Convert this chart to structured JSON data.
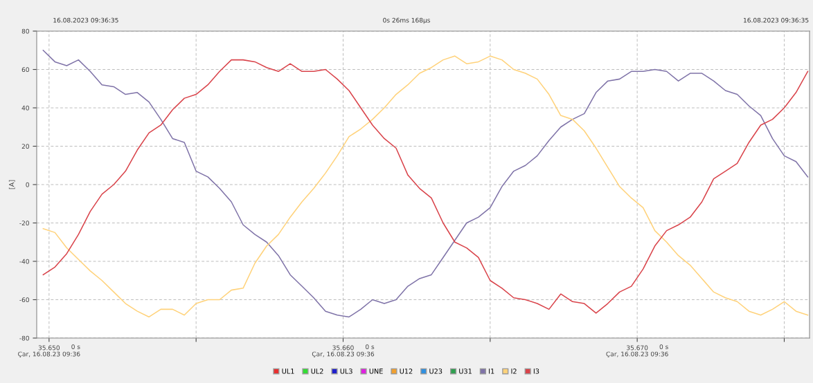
{
  "chart_data": {
    "type": "line",
    "ylabel": "[A]",
    "annotations": [
      "16.08.2023 09:36:35",
      "0s 26ms 168µs",
      "16.08.2023 09:36:35",
      "0 s\nÇar, 16.08.23 09:36",
      "0 s\nÇar, 16.08.23 09:36",
      "0 s\nÇar, 16.08.23 09:36"
    ],
    "x": [
      35.6498,
      35.6502,
      35.6506,
      35.651,
      35.6514,
      35.6518,
      35.6522,
      35.6526,
      35.653,
      35.6534,
      35.6538,
      35.6542,
      35.6546,
      35.655,
      35.6554,
      35.6558,
      35.6562,
      35.6566,
      35.657,
      35.6574,
      35.6578,
      35.6582,
      35.6586,
      35.659,
      35.6594,
      35.6598,
      35.6602,
      35.6606,
      35.661,
      35.6614,
      35.6618,
      35.6622,
      35.6626,
      35.663,
      35.6634,
      35.6638,
      35.6642,
      35.6646,
      35.665,
      35.6654,
      35.6658,
      35.6662,
      35.6666,
      35.667,
      35.6674,
      35.6678,
      35.6682,
      35.6686,
      35.669,
      35.6694,
      35.6698,
      35.6702,
      35.6706,
      35.671,
      35.6714,
      35.6718,
      35.6722,
      35.6726,
      35.673,
      35.6734,
      35.6738,
      35.6742,
      35.6746,
      35.675,
      35.6754,
      35.6758
    ],
    "xlim": [
      35.64958,
      35.67586
    ],
    "xticks": [
      {
        "value": 35.65,
        "label": "35.650"
      },
      {
        "value": 35.655,
        "label": null
      },
      {
        "value": 35.66,
        "label": "35.660"
      },
      {
        "value": 35.665,
        "label": null
      },
      {
        "value": 35.67,
        "label": "35.670"
      },
      {
        "value": 35.675,
        "label": null
      }
    ],
    "ylim": [
      -80,
      80
    ],
    "yticks": [
      -80,
      -60,
      -40,
      -20,
      0,
      20,
      40,
      60,
      80
    ],
    "grid": true,
    "legend": "bottom",
    "line_style": "solid",
    "marker": "none",
    "series": [
      {
        "name": "UL1",
        "color": "#e83030",
        "values": [
          null,
          null,
          null,
          null,
          null,
          null,
          null,
          null,
          null,
          null,
          null,
          null,
          null,
          null,
          null,
          null,
          null,
          null,
          null,
          null,
          null,
          null,
          null,
          null,
          null,
          null,
          null,
          null,
          null,
          null,
          null,
          null,
          null,
          null,
          null,
          null,
          null,
          null,
          null,
          null,
          null,
          null,
          null,
          null,
          null,
          null,
          null,
          null,
          null,
          null,
          null,
          null,
          null,
          null,
          null,
          null,
          null,
          null,
          null,
          null,
          null,
          null,
          null,
          null,
          null,
          null
        ]
      },
      {
        "name": "UL2",
        "color": "#33dd33",
        "values": [
          null,
          null,
          null,
          null,
          null,
          null,
          null,
          null,
          null,
          null,
          null,
          null,
          null,
          null,
          null,
          null,
          null,
          null,
          null,
          null,
          null,
          null,
          null,
          null,
          null,
          null,
          null,
          null,
          null,
          null,
          null,
          null,
          null,
          null,
          null,
          null,
          null,
          null,
          null,
          null,
          null,
          null,
          null,
          null,
          null,
          null,
          null,
          null,
          null,
          null,
          null,
          null,
          null,
          null,
          null,
          null,
          null,
          null,
          null,
          null,
          null,
          null,
          null,
          null,
          null,
          null
        ]
      },
      {
        "name": "UL3",
        "color": "#2020cc",
        "values": [
          null,
          null,
          null,
          null,
          null,
          null,
          null,
          null,
          null,
          null,
          null,
          null,
          null,
          null,
          null,
          null,
          null,
          null,
          null,
          null,
          null,
          null,
          null,
          null,
          null,
          null,
          null,
          null,
          null,
          null,
          null,
          null,
          null,
          null,
          null,
          null,
          null,
          null,
          null,
          null,
          null,
          null,
          null,
          null,
          null,
          null,
          null,
          null,
          null,
          null,
          null,
          null,
          null,
          null,
          null,
          null,
          null,
          null,
          null,
          null,
          null,
          null,
          null,
          null,
          null,
          null
        ]
      },
      {
        "name": "UNE",
        "color": "#e020e0",
        "values": [
          null,
          null,
          null,
          null,
          null,
          null,
          null,
          null,
          null,
          null,
          null,
          null,
          null,
          null,
          null,
          null,
          null,
          null,
          null,
          null,
          null,
          null,
          null,
          null,
          null,
          null,
          null,
          null,
          null,
          null,
          null,
          null,
          null,
          null,
          null,
          null,
          null,
          null,
          null,
          null,
          null,
          null,
          null,
          null,
          null,
          null,
          null,
          null,
          null,
          null,
          null,
          null,
          null,
          null,
          null,
          null,
          null,
          null,
          null,
          null,
          null,
          null,
          null,
          null,
          null,
          null
        ]
      },
      {
        "name": "U12",
        "color": "#f0a030",
        "values": [
          null,
          null,
          null,
          null,
          null,
          null,
          null,
          null,
          null,
          null,
          null,
          null,
          null,
          null,
          null,
          null,
          null,
          null,
          null,
          null,
          null,
          null,
          null,
          null,
          null,
          null,
          null,
          null,
          null,
          null,
          null,
          null,
          null,
          null,
          null,
          null,
          null,
          null,
          null,
          null,
          null,
          null,
          null,
          null,
          null,
          null,
          null,
          null,
          null,
          null,
          null,
          null,
          null,
          null,
          null,
          null,
          null,
          null,
          null,
          null,
          null,
          null,
          null,
          null,
          null,
          null
        ]
      },
      {
        "name": "U23",
        "color": "#3090e0",
        "values": [
          null,
          null,
          null,
          null,
          null,
          null,
          null,
          null,
          null,
          null,
          null,
          null,
          null,
          null,
          null,
          null,
          null,
          null,
          null,
          null,
          null,
          null,
          null,
          null,
          null,
          null,
          null,
          null,
          null,
          null,
          null,
          null,
          null,
          null,
          null,
          null,
          null,
          null,
          null,
          null,
          null,
          null,
          null,
          null,
          null,
          null,
          null,
          null,
          null,
          null,
          null,
          null,
          null,
          null,
          null,
          null,
          null,
          null,
          null,
          null,
          null,
          null,
          null,
          null,
          null,
          null
        ]
      },
      {
        "name": "U31",
        "color": "#30a050",
        "values": [
          null,
          null,
          null,
          null,
          null,
          null,
          null,
          null,
          null,
          null,
          null,
          null,
          null,
          null,
          null,
          null,
          null,
          null,
          null,
          null,
          null,
          null,
          null,
          null,
          null,
          null,
          null,
          null,
          null,
          null,
          null,
          null,
          null,
          null,
          null,
          null,
          null,
          null,
          null,
          null,
          null,
          null,
          null,
          null,
          null,
          null,
          null,
          null,
          null,
          null,
          null,
          null,
          null,
          null,
          null,
          null,
          null,
          null,
          null,
          null,
          null,
          null,
          null,
          null,
          null,
          null
        ]
      },
      {
        "name": "I1",
        "color": "#7f73a8",
        "values": [
          70,
          64,
          62,
          65,
          59,
          52,
          51,
          47,
          48,
          43,
          34,
          24,
          22,
          7,
          4,
          -2,
          -9,
          -21,
          -26,
          -30,
          -37,
          -47,
          -53,
          -59,
          -66,
          -68,
          -69,
          -65,
          -60,
          -62,
          -60,
          -53,
          -49,
          -47,
          -38,
          -29,
          -20,
          -17,
          -12,
          -1,
          7,
          10,
          15,
          23,
          30,
          34,
          37,
          48,
          54,
          55,
          59,
          59,
          60,
          59,
          54,
          58,
          58,
          54,
          49,
          47,
          41,
          36,
          24,
          15,
          12,
          4
        ]
      },
      {
        "name": "I2",
        "color": "#ffd27a",
        "values": [
          -23,
          -25,
          -33,
          -39,
          -45,
          -50,
          -56,
          -62,
          -66,
          -69,
          -65,
          -65,
          -68,
          -62,
          -60,
          -60,
          -55,
          -54,
          -41,
          -32,
          -26,
          -17,
          -9,
          -2,
          6,
          15,
          25,
          29,
          34,
          40,
          47,
          52,
          58,
          61,
          65,
          67,
          63,
          64,
          67,
          65,
          60,
          58,
          55,
          47,
          36,
          34,
          28,
          19,
          9,
          -1,
          -7,
          -12,
          -24,
          -30,
          -37,
          -42,
          -49,
          -56,
          -59,
          -61,
          -66,
          -68,
          -65,
          -61,
          -66,
          -68
        ]
      },
      {
        "name": "I3",
        "color": "#d9434a",
        "values": [
          -47,
          -43,
          -36,
          -26,
          -14,
          -5,
          0,
          7,
          18,
          27,
          31,
          39,
          45,
          47,
          52,
          59,
          65,
          65,
          64,
          61,
          59,
          63,
          59,
          59,
          60,
          55,
          49,
          40,
          31,
          24,
          19,
          5,
          -2,
          -7,
          -20,
          -30,
          -33,
          -38,
          -50,
          -54,
          -59,
          -60,
          -62,
          -65,
          -57,
          -61,
          -62,
          -67,
          -62,
          -56,
          -53,
          -44,
          -32,
          -24,
          -21,
          -17,
          -9,
          3,
          7,
          11,
          22,
          31,
          34,
          40,
          48,
          59
        ]
      }
    ]
  }
}
